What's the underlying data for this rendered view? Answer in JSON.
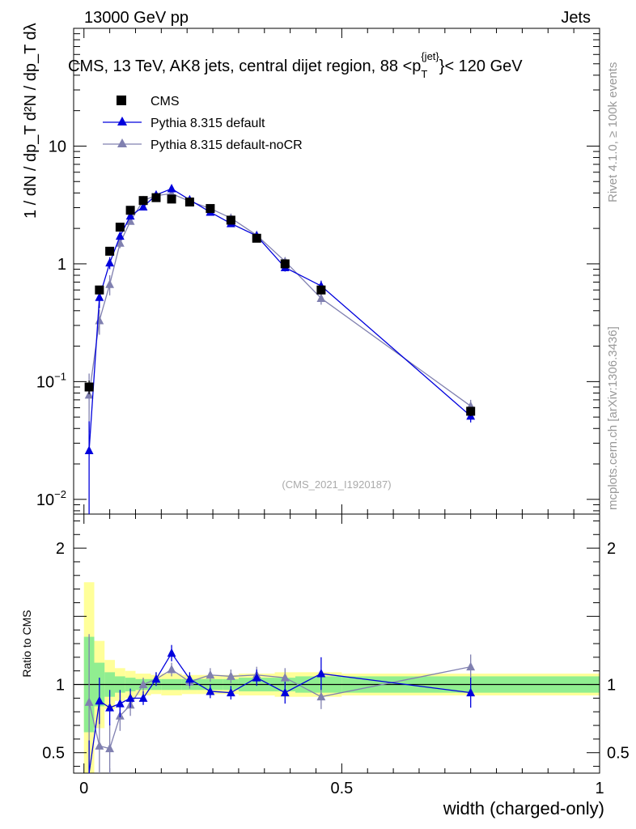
{
  "header": {
    "left": "13000 GeV pp",
    "right": "Jets"
  },
  "side_labels": {
    "rivet": "Rivet 4.1.0, ≥ 100k events",
    "mcplots": "mcplots.cern.ch [arXiv:1306.3436]"
  },
  "watermark": "(CMS_2021_I1920187)",
  "chart_data": {
    "type": "scatter",
    "title": "CMS, 13 TeV, AK8 jets, central dijet region, 88 <p_T^{jet}< 120 GeV",
    "title_parts": {
      "main": "CMS, 13 TeV, AK8 jets, central dijet region, 88 <p",
      "sub": "T",
      "sup": "{jet}",
      "end": "}< 120 GeV"
    },
    "xlabel": "width (charged-only)",
    "ylabel_main": "1 / dN / dp_T  d²N / dp_T dλ",
    "ylabel_ratio": "Ratio to CMS",
    "xlim": [
      -0.02,
      1.0
    ],
    "ylim_main": [
      0.0075,
      100
    ],
    "ylim_ratio": [
      0.35,
      2.25
    ],
    "y_scale_main": "log",
    "x_ticks": [
      0,
      0.5,
      1
    ],
    "x_tick_labels": [
      "0",
      "0.5",
      "1"
    ],
    "y_ticks_main": [
      0.01,
      0.1,
      1,
      10
    ],
    "y_tick_labels_main": [
      {
        "base": "10",
        "exp": "−2"
      },
      {
        "base": "10",
        "exp": "−1"
      },
      {
        "base": "1",
        "exp": ""
      },
      {
        "base": "10",
        "exp": ""
      }
    ],
    "y_ticks_ratio": [
      0.5,
      1,
      2
    ],
    "y_tick_labels_ratio": [
      "0.5",
      "1",
      "2"
    ],
    "legend_position": "top-left",
    "x": [
      0.01,
      0.03,
      0.05,
      0.07,
      0.09,
      0.115,
      0.14,
      0.17,
      0.205,
      0.245,
      0.285,
      0.335,
      0.39,
      0.46,
      0.75
    ],
    "x_edges": [
      0.0,
      0.02,
      0.04,
      0.06,
      0.08,
      0.1,
      0.13,
      0.15,
      0.19,
      0.22,
      0.27,
      0.3,
      0.37,
      0.41,
      0.5,
      1.0
    ],
    "series": [
      {
        "name": "CMS",
        "color": "#000000",
        "marker": "square",
        "values": [
          0.09,
          0.6,
          1.28,
          2.05,
          2.85,
          3.45,
          3.65,
          3.55,
          3.35,
          2.95,
          2.35,
          1.65,
          1.0,
          0.6,
          0.056
        ],
        "yerr": [
          0.012,
          0.05,
          0.08,
          0.1,
          0.12,
          0.13,
          0.13,
          0.13,
          0.12,
          0.1,
          0.09,
          0.07,
          0.06,
          0.04,
          0.005
        ]
      },
      {
        "name": "Pythia 8.315 default",
        "color": "#0000dd",
        "marker": "triangle",
        "values": [
          0.026,
          0.52,
          1.02,
          1.72,
          2.55,
          3.05,
          3.85,
          4.35,
          3.5,
          2.75,
          2.2,
          1.73,
          0.93,
          0.65,
          0.051
        ],
        "yerr": [
          0.02,
          0.1,
          0.12,
          0.12,
          0.14,
          0.13,
          0.13,
          0.18,
          0.12,
          0.1,
          0.09,
          0.08,
          0.07,
          0.07,
          0.006
        ],
        "ratio": [
          0.29,
          0.88,
          0.83,
          0.86,
          0.9,
          0.9,
          1.04,
          1.23,
          1.04,
          0.95,
          0.94,
          1.05,
          0.94,
          1.08,
          0.94
        ],
        "ratio_err": [
          0.3,
          0.17,
          0.13,
          0.1,
          0.07,
          0.05,
          0.05,
          0.06,
          0.05,
          0.05,
          0.05,
          0.06,
          0.08,
          0.12,
          0.11
        ]
      },
      {
        "name": "Pythia 8.315 default-noCR",
        "color": "#8080b0",
        "marker": "triangle",
        "values": [
          0.077,
          0.33,
          0.67,
          1.5,
          2.3,
          3.45,
          3.8,
          3.95,
          3.4,
          2.95,
          2.45,
          1.75,
          1.05,
          0.51,
          0.062
        ],
        "yerr": [
          0.04,
          0.08,
          0.13,
          0.14,
          0.14,
          0.14,
          0.15,
          0.15,
          0.12,
          0.12,
          0.1,
          0.08,
          0.08,
          0.06,
          0.008
        ],
        "ratio": [
          0.87,
          0.55,
          0.53,
          0.77,
          0.85,
          1.0,
          1.04,
          1.11,
          1.02,
          1.07,
          1.06,
          1.07,
          1.05,
          0.91,
          1.13
        ],
        "ratio_err": [
          0.5,
          0.28,
          0.18,
          0.11,
          0.08,
          0.05,
          0.05,
          0.05,
          0.05,
          0.05,
          0.05,
          0.06,
          0.07,
          0.09,
          0.09
        ]
      }
    ],
    "ratio_band_green": [
      0.35,
      0.16,
      0.09,
      0.06,
      0.05,
      0.04,
      0.04,
      0.04,
      0.04,
      0.04,
      0.04,
      0.05,
      0.05,
      0.06,
      0.06
    ],
    "ratio_band_yellow": [
      0.75,
      0.32,
      0.18,
      0.12,
      0.1,
      0.08,
      0.07,
      0.08,
      0.07,
      0.07,
      0.07,
      0.08,
      0.09,
      0.09,
      0.08
    ],
    "band_colors": {
      "green": "#90ee90",
      "yellow": "#ffff99"
    }
  }
}
